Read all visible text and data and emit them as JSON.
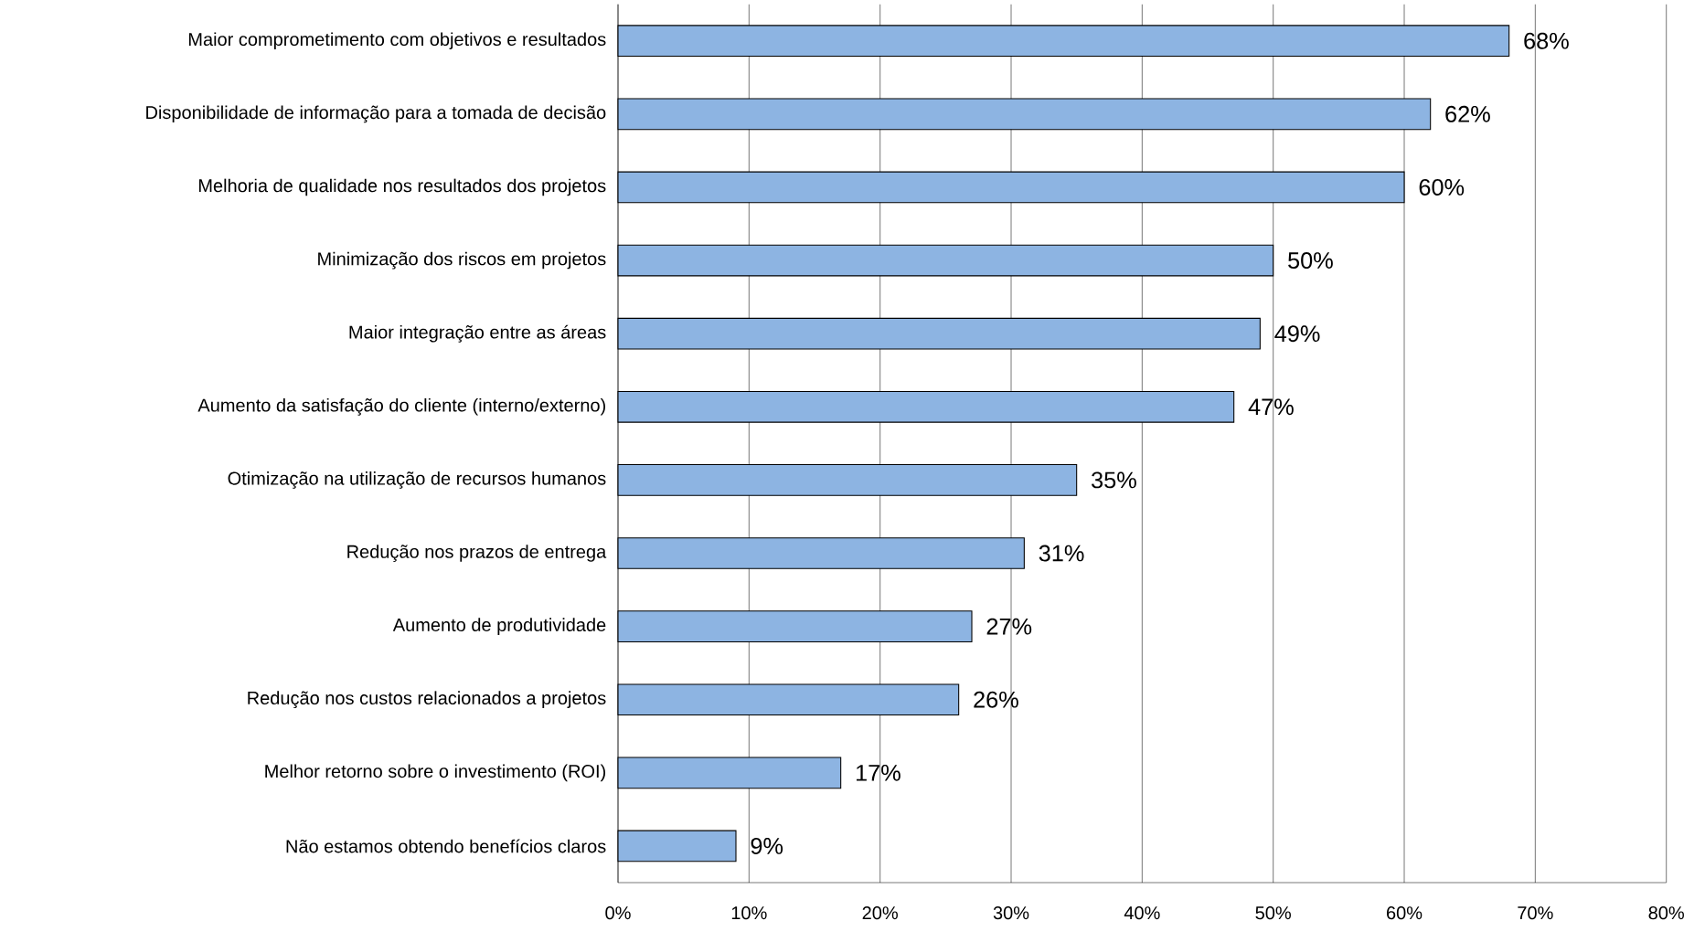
{
  "chart_data": {
    "type": "bar",
    "orientation": "horizontal",
    "categories": [
      "Maior comprometimento com objetivos e resultados",
      "Disponibilidade de informação para a tomada de decisão",
      "Melhoria de qualidade nos resultados dos projetos",
      "Minimização dos riscos em projetos",
      "Maior integração entre as áreas",
      "Aumento da satisfação do cliente (interno/externo)",
      "Otimização na utilização de recursos humanos",
      "Redução nos prazos de entrega",
      "Aumento de produtividade",
      "Redução nos custos relacionados a projetos",
      "Melhor retorno sobre o investimento (ROI)",
      "Não estamos obtendo benefícios claros"
    ],
    "values": [
      68,
      62,
      60,
      50,
      49,
      47,
      35,
      31,
      27,
      26,
      17,
      9
    ],
    "value_labels": [
      "68%",
      "62%",
      "60%",
      "50%",
      "49%",
      "47%",
      "35%",
      "31%",
      "27%",
      "26%",
      "17%",
      "9%"
    ],
    "color": "#8db4e2",
    "xlim": [
      0,
      80
    ],
    "xticks": [
      {
        "value": 0,
        "label": "0%"
      },
      {
        "value": 10,
        "label": "10%"
      },
      {
        "value": 20,
        "label": "20%"
      },
      {
        "value": 30,
        "label": "30%"
      },
      {
        "value": 40,
        "label": "40%"
      },
      {
        "value": 50,
        "label": "50%"
      },
      {
        "value": 60,
        "label": "60%"
      },
      {
        "value": 70,
        "label": "70%"
      },
      {
        "value": 80,
        "label": "80%"
      }
    ],
    "grid": "x"
  }
}
